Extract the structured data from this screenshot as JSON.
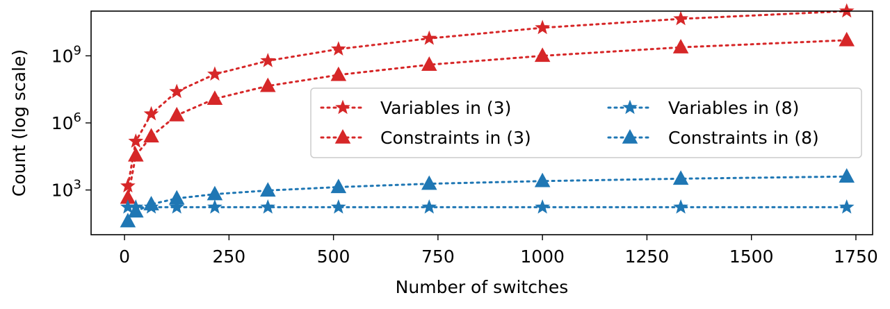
{
  "chart_data": {
    "type": "line",
    "xlabel": "Number of switches",
    "ylabel": "Count (log scale)",
    "xlim": [
      -80,
      1790
    ],
    "ylim": [
      10,
      100000000000
    ],
    "y_scale": "log",
    "grid": false,
    "legend_position": "center-right",
    "legend_columns": 2,
    "x_ticks": [
      0,
      250,
      500,
      750,
      1000,
      1250,
      1500,
      1750
    ],
    "y_ticks": [
      {
        "value": 1000,
        "base": "10",
        "exp": "3"
      },
      {
        "value": 1000000,
        "base": "10",
        "exp": "6"
      },
      {
        "value": 1000000000,
        "base": "10",
        "exp": "9"
      }
    ],
    "x": [
      8,
      27,
      64,
      125,
      216,
      343,
      512,
      729,
      1000,
      1331,
      1728
    ],
    "series": [
      {
        "name": "Variables in (3)",
        "color": "#d62728",
        "marker": "star",
        "values": [
          1500,
          150000,
          2500000,
          25000000,
          150000000,
          600000000,
          2000000000,
          6000000000,
          18000000000,
          45000000000,
          100000000000
        ]
      },
      {
        "name": "Constraints in (3)",
        "color": "#d62728",
        "marker": "triangle",
        "values": [
          450,
          35000,
          250000,
          2200000,
          12000000,
          45000000,
          140000000,
          400000000,
          1000000000,
          2400000000,
          5000000000
        ]
      },
      {
        "name": "Variables in (8)",
        "color": "#1f77b4",
        "marker": "star",
        "values": [
          170,
          170,
          170,
          170,
          170,
          170,
          170,
          170,
          170,
          170,
          170
        ]
      },
      {
        "name": "Constraints in (8)",
        "color": "#1f77b4",
        "marker": "triangle",
        "values": [
          40,
          110,
          230,
          420,
          650,
          950,
          1350,
          1900,
          2500,
          3200,
          4000
        ]
      }
    ]
  }
}
